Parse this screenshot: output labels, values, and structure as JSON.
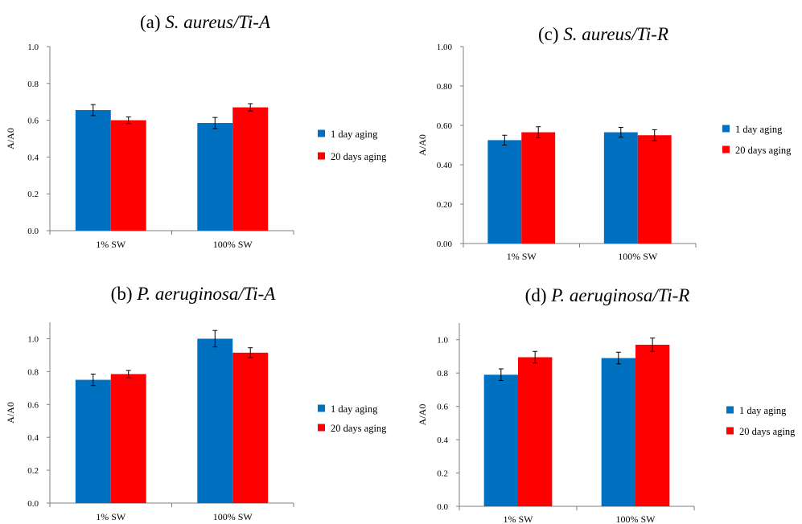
{
  "legend": [
    "1 day aging",
    "20 days aging"
  ],
  "colors": {
    "day1": "#0070C0",
    "day20": "#FF0000",
    "axis": "#7f7f7f",
    "errbar": "#000000"
  },
  "chart_data": [
    {
      "id": "a",
      "type": "bar",
      "title_prefix": "(a) ",
      "title_italic": "S. aureus/Ti-A",
      "ylabel": "A/A0",
      "xlabel": "",
      "categories": [
        "1% SW",
        "100% SW"
      ],
      "ylim": [
        0,
        1.0
      ],
      "yticks": [
        "0.0",
        "0.2",
        "0.4",
        "0.6",
        "0.8",
        "1.0"
      ],
      "grid": false,
      "legend_position": "right",
      "series": [
        {
          "name": "1 day aging",
          "values": [
            0.655,
            0.585
          ],
          "errors": [
            0.03,
            0.03
          ]
        },
        {
          "name": "20 days aging",
          "values": [
            0.6,
            0.67
          ],
          "errors": [
            0.018,
            0.02
          ]
        }
      ]
    },
    {
      "id": "b",
      "type": "bar",
      "title_prefix": "(b) ",
      "title_italic": "P. aeruginosa/Ti-A",
      "ylabel": "A/A0",
      "xlabel": "",
      "categories": [
        "1% SW",
        "100% SW"
      ],
      "ylim": [
        0,
        1.1
      ],
      "yticks": [
        "0.0",
        "0.2",
        "0.4",
        "0.6",
        "0.8",
        "1.0"
      ],
      "grid": false,
      "legend_position": "right",
      "series": [
        {
          "name": "1 day aging",
          "values": [
            0.75,
            1.0
          ],
          "errors": [
            0.035,
            0.05
          ]
        },
        {
          "name": "20 days aging",
          "values": [
            0.785,
            0.915
          ],
          "errors": [
            0.022,
            0.03
          ]
        }
      ]
    },
    {
      "id": "c",
      "type": "bar",
      "title_prefix": "(c) ",
      "title_italic": "S. aureus/Ti-R",
      "ylabel": "A/A0",
      "xlabel": "",
      "categories": [
        "1% SW",
        "100% SW"
      ],
      "ylim": [
        0,
        1.0
      ],
      "yticks": [
        "0.00",
        "0.20",
        "0.40",
        "0.60",
        "0.80",
        "1.00"
      ],
      "grid": false,
      "legend_position": "right",
      "series": [
        {
          "name": "1 day aging",
          "values": [
            0.525,
            0.565
          ],
          "errors": [
            0.025,
            0.025
          ]
        },
        {
          "name": "20 days aging",
          "values": [
            0.565,
            0.55
          ],
          "errors": [
            0.028,
            0.028
          ]
        }
      ]
    },
    {
      "id": "d",
      "type": "bar",
      "title_prefix": "(d) ",
      "title_italic": "P. aeruginosa/Ti-R",
      "ylabel": "A/A0",
      "xlabel": "",
      "categories": [
        "1% SW",
        "100% SW"
      ],
      "ylim": [
        0,
        1.1
      ],
      "yticks": [
        "0.0",
        "0.2",
        "0.4",
        "0.6",
        "0.8",
        "1.0"
      ],
      "grid": false,
      "legend_position": "right",
      "series": [
        {
          "name": "1 day aging",
          "values": [
            0.79,
            0.89
          ],
          "errors": [
            0.035,
            0.035
          ]
        },
        {
          "name": "20 days aging",
          "values": [
            0.895,
            0.97
          ],
          "errors": [
            0.035,
            0.04
          ]
        }
      ]
    }
  ]
}
